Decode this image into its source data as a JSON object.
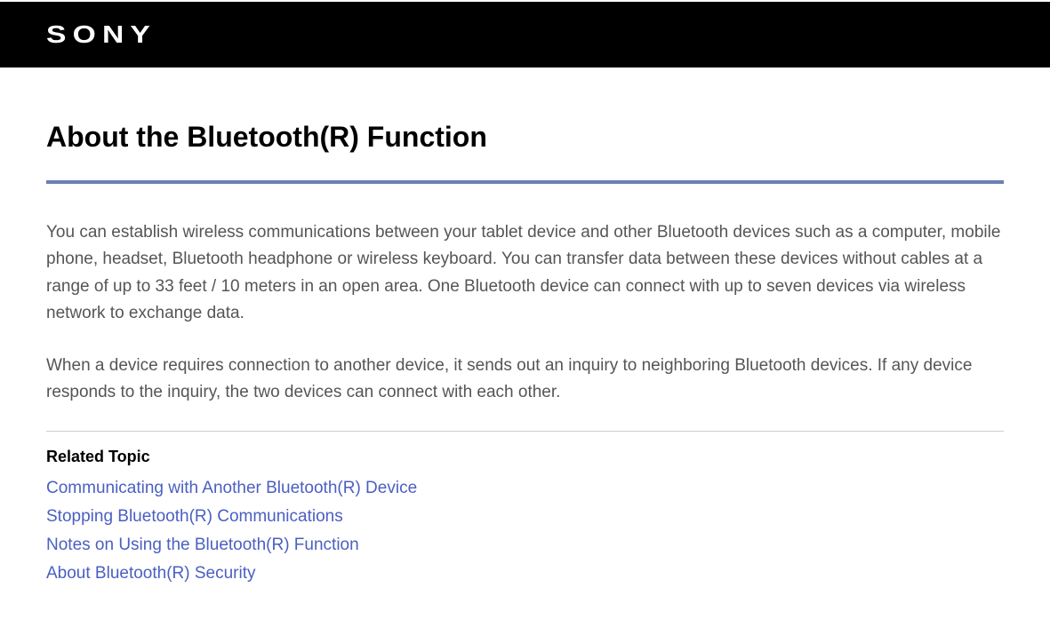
{
  "header": {
    "brand": "SONY"
  },
  "page": {
    "title": "About the Bluetooth(R) Function",
    "paragraphs": [
      "You can establish wireless communications between your tablet device and other Bluetooth devices such as a computer, mobile phone, headset, Bluetooth headphone or wireless keyboard. You can transfer data between these devices without cables at a range of up to 33 feet / 10 meters in an open area. One Bluetooth device can connect with up to seven devices via wireless network to exchange data.",
      "When a device requires connection to another device, it sends out an inquiry to neighboring Bluetooth devices. If any device responds to the inquiry, the two devices can connect with each other."
    ]
  },
  "related": {
    "heading": "Related Topic",
    "links": [
      "Communicating with Another Bluetooth(R) Device",
      "Stopping Bluetooth(R) Communications",
      "Notes on Using the Bluetooth(R) Function",
      "About Bluetooth(R) Security"
    ]
  },
  "colors": {
    "header_bg": "#000000",
    "logo_color": "#ffffff",
    "divider_accent": "#6a7fb5",
    "body_text": "#555555",
    "link_color": "#4a5fc1",
    "section_divider": "#cccccc"
  }
}
